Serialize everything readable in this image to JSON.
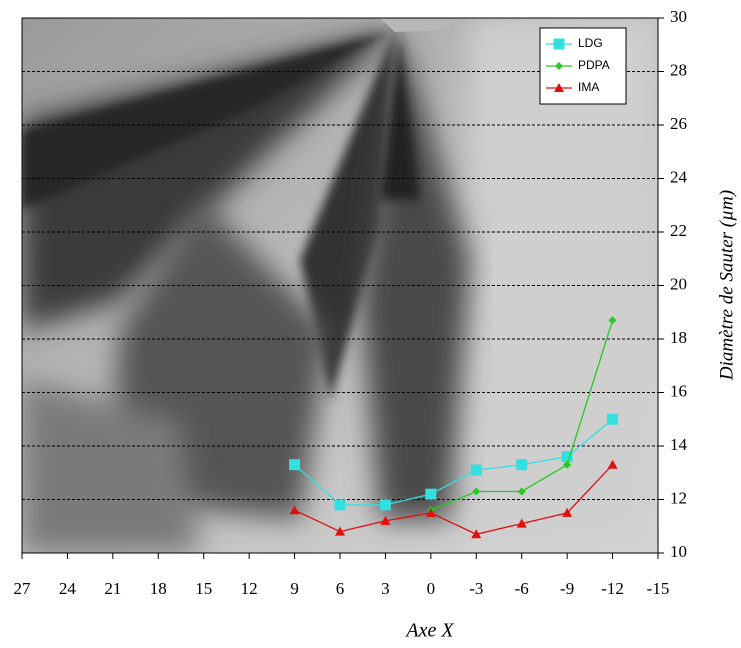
{
  "chart_data": {
    "type": "line",
    "x_label": "Axe X",
    "y_label": "Diamètre de Sauter (µm)",
    "x": [
      9,
      6,
      3,
      0,
      -3,
      -6,
      -9,
      -12
    ],
    "series": [
      {
        "name": "LDG",
        "color": "#33e0e0",
        "marker": "square",
        "values": [
          13.3,
          11.8,
          11.8,
          12.2,
          13.1,
          13.3,
          13.6,
          15.0
        ]
      },
      {
        "name": "PDPA",
        "color": "#22cc22",
        "marker": "diamond",
        "values": [
          null,
          null,
          null,
          11.6,
          12.3,
          12.3,
          13.3,
          18.7
        ]
      },
      {
        "name": "IMA",
        "color": "#e01010",
        "marker": "triangle",
        "values": [
          11.6,
          10.8,
          11.2,
          11.5,
          10.7,
          11.1,
          11.5,
          13.3
        ]
      }
    ],
    "xlim": [
      27,
      -15
    ],
    "xticks": [
      27,
      24,
      21,
      18,
      15,
      12,
      9,
      6,
      3,
      0,
      -3,
      -6,
      -9,
      -12,
      -15
    ],
    "ylim": [
      10,
      30
    ],
    "yticks": [
      10,
      12,
      14,
      16,
      18,
      20,
      22,
      24,
      26,
      28,
      30
    ],
    "grid": true,
    "y_axis_side": "right",
    "legend": "upper right"
  }
}
